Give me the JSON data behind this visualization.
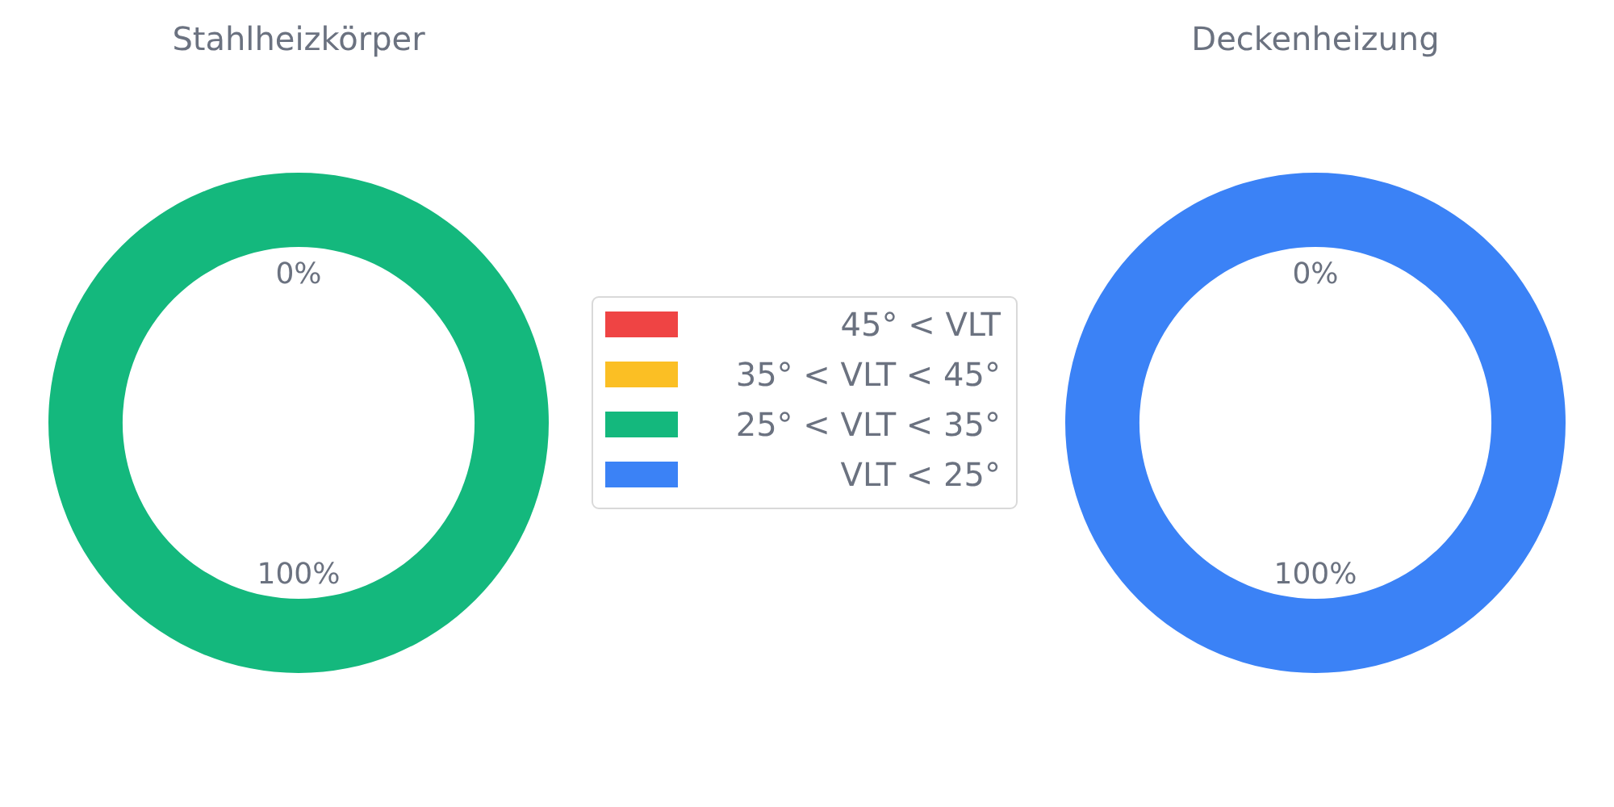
{
  "chart_data": [
    {
      "type": "donut",
      "title": "Stahlheizkörper",
      "categories": [
        "45° < VLT",
        "35° < VLT < 45°",
        "25° < VLT < 35°",
        "VLT < 25°"
      ],
      "values": [
        0,
        0,
        100,
        0
      ],
      "value_labels": [
        "0%",
        null,
        "100%",
        null
      ],
      "colors": [
        "#ef4444",
        "#fbbf24",
        "#14b87d",
        "#3b82f6"
      ],
      "legend": "right"
    },
    {
      "type": "donut",
      "title": "Deckenheizung",
      "categories": [
        null,
        null,
        null,
        null
      ],
      "values": [
        0,
        0,
        0,
        100
      ],
      "value_labels": [
        "0%",
        null,
        null,
        "100%"
      ],
      "colors": [
        "#ef4444",
        "#fbbf24",
        "#14b87d",
        "#3b82f6"
      ]
    }
  ]
}
